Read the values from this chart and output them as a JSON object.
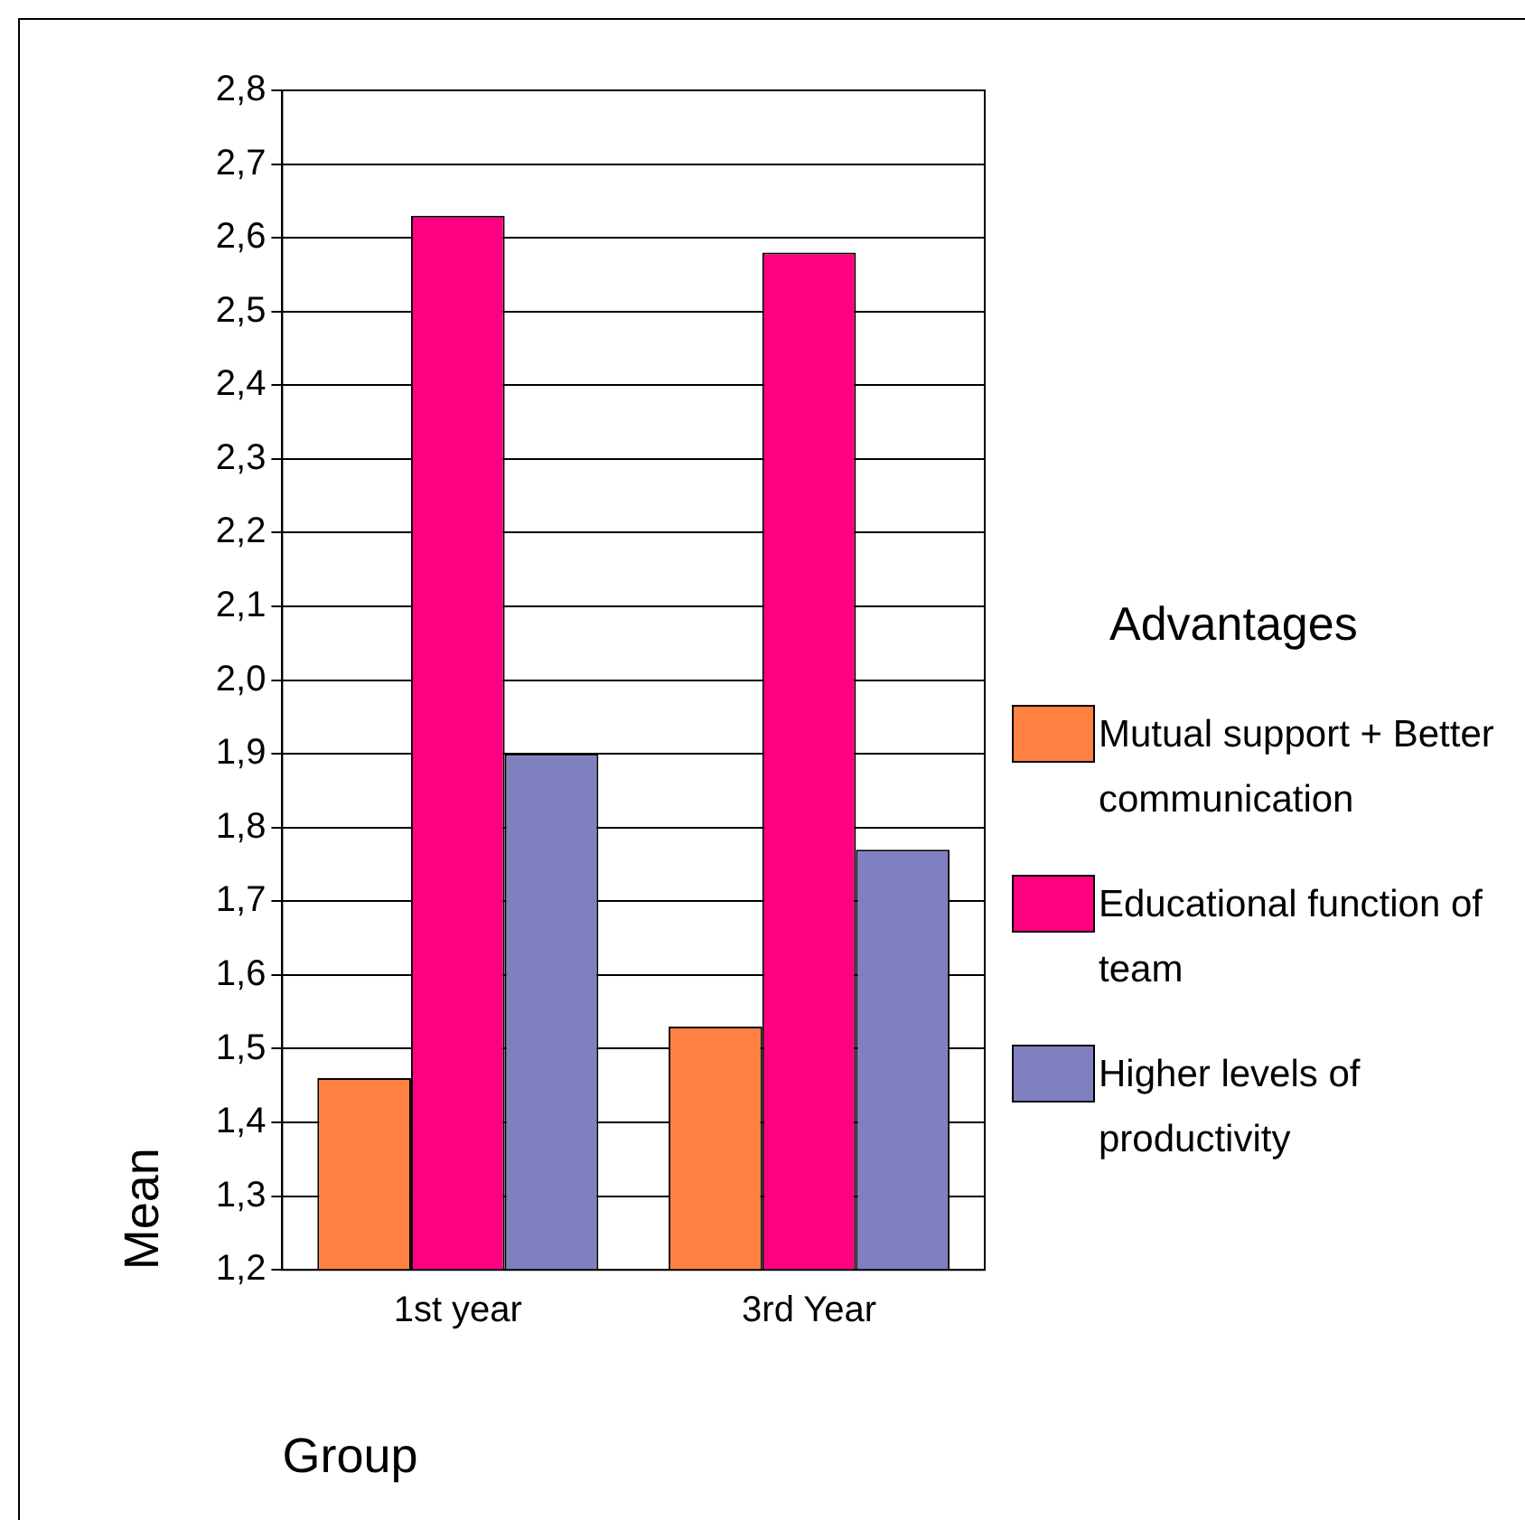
{
  "chart_data": {
    "type": "bar",
    "xlabel": "Group",
    "ylabel": "Mean",
    "legend_title": "Advantages",
    "categories": [
      "1st year",
      "3rd Year"
    ],
    "series": [
      {
        "name": "Mutual support + Better communication",
        "color": "#ff8040",
        "values": [
          1.46,
          1.53
        ]
      },
      {
        "name": "Educational function of team",
        "color": "#ff0080",
        "values": [
          2.63,
          2.58
        ]
      },
      {
        "name": "Higher levels of productivity",
        "color": "#8080c0",
        "values": [
          1.9,
          1.77
        ]
      }
    ],
    "ylim": [
      1.2,
      2.8
    ],
    "yticks": [
      {
        "value": 1.2,
        "label": "1,2"
      },
      {
        "value": 1.3,
        "label": "1,3"
      },
      {
        "value": 1.4,
        "label": "1,4"
      },
      {
        "value": 1.5,
        "label": "1,5"
      },
      {
        "value": 1.6,
        "label": "1,6"
      },
      {
        "value": 1.7,
        "label": "1,7"
      },
      {
        "value": 1.8,
        "label": "1,8"
      },
      {
        "value": 1.9,
        "label": "1,9"
      },
      {
        "value": 2.0,
        "label": "2,0"
      },
      {
        "value": 2.1,
        "label": "2,1"
      },
      {
        "value": 2.2,
        "label": "2,2"
      },
      {
        "value": 2.3,
        "label": "2,3"
      },
      {
        "value": 2.4,
        "label": "2,4"
      },
      {
        "value": 2.5,
        "label": "2,5"
      },
      {
        "value": 2.6,
        "label": "2,6"
      },
      {
        "value": 2.7,
        "label": "2,7"
      },
      {
        "value": 2.8,
        "label": "2,8"
      }
    ],
    "grid": "y",
    "legend": "right"
  }
}
